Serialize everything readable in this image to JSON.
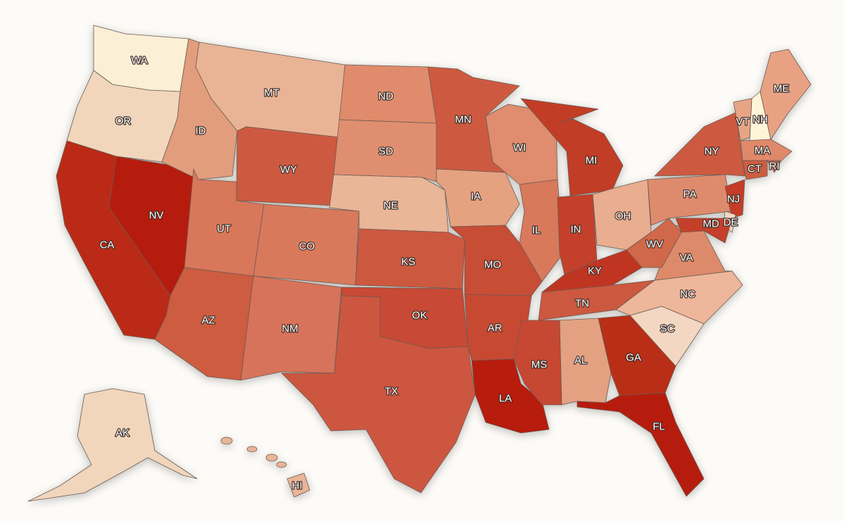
{
  "map": {
    "colors": {
      "background": "#fcfbf7",
      "border": "#6b5a52",
      "label_fill": "#ffffff",
      "label_outline": "#3a2a24"
    },
    "states": [
      {
        "abbr": "WA",
        "color": "#fbefd5"
      },
      {
        "abbr": "OR",
        "color": "#f1d6bc"
      },
      {
        "abbr": "CA",
        "color": "#bb2a13"
      },
      {
        "abbr": "NV",
        "color": "#b51f0e"
      },
      {
        "abbr": "ID",
        "color": "#e29d7d"
      },
      {
        "abbr": "MT",
        "color": "#e9b495"
      },
      {
        "abbr": "WY",
        "color": "#cd5a40"
      },
      {
        "abbr": "UT",
        "color": "#d9775a"
      },
      {
        "abbr": "CO",
        "color": "#d8795c"
      },
      {
        "abbr": "AZ",
        "color": "#cd5b41"
      },
      {
        "abbr": "NM",
        "color": "#d7735a"
      },
      {
        "abbr": "ND",
        "color": "#df8b6c"
      },
      {
        "abbr": "SD",
        "color": "#df8f70"
      },
      {
        "abbr": "NE",
        "color": "#e9b697"
      },
      {
        "abbr": "KS",
        "color": "#cd5941"
      },
      {
        "abbr": "OK",
        "color": "#c84a34"
      },
      {
        "abbr": "TX",
        "color": "#cd563f"
      },
      {
        "abbr": "MN",
        "color": "#cd5a40"
      },
      {
        "abbr": "IA",
        "color": "#e4a281"
      },
      {
        "abbr": "MO",
        "color": "#c84d36"
      },
      {
        "abbr": "AR",
        "color": "#c84a33"
      },
      {
        "abbr": "LA",
        "color": "#b71e0c"
      },
      {
        "abbr": "WI",
        "color": "#df8d6e"
      },
      {
        "abbr": "IL",
        "color": "#d8795c"
      },
      {
        "abbr": "MI",
        "color": "#c23c26"
      },
      {
        "abbr": "IN",
        "color": "#c43f29"
      },
      {
        "abbr": "OH",
        "color": "#e9ad8f"
      },
      {
        "abbr": "KY",
        "color": "#c03421"
      },
      {
        "abbr": "TN",
        "color": "#cc5840"
      },
      {
        "abbr": "MS",
        "color": "#c64630"
      },
      {
        "abbr": "AL",
        "color": "#e3a182"
      },
      {
        "abbr": "GA",
        "color": "#b92d17"
      },
      {
        "abbr": "FL",
        "color": "#b61a0c"
      },
      {
        "abbr": "SC",
        "color": "#f3d7c2"
      },
      {
        "abbr": "NC",
        "color": "#eeb69a"
      },
      {
        "abbr": "VA",
        "color": "#dd8a6b"
      },
      {
        "abbr": "WV",
        "color": "#d06849"
      },
      {
        "abbr": "PA",
        "color": "#de8b6d"
      },
      {
        "abbr": "NY",
        "color": "#cd5a40"
      },
      {
        "abbr": "VT",
        "color": "#e8a586"
      },
      {
        "abbr": "NH",
        "color": "#fef4d8"
      },
      {
        "abbr": "ME",
        "color": "#e8a283"
      },
      {
        "abbr": "MA",
        "color": "#e0896a"
      },
      {
        "abbr": "RI",
        "color": "#d67058"
      },
      {
        "abbr": "CT",
        "color": "#cd5b41"
      },
      {
        "abbr": "NJ",
        "color": "#c43d27"
      },
      {
        "abbr": "DE",
        "color": "#f2d8c2"
      },
      {
        "abbr": "MD",
        "color": "#c43f29"
      },
      {
        "abbr": "AK",
        "color": "#f1d6bc"
      },
      {
        "abbr": "HI",
        "color": "#e9b497"
      }
    ]
  }
}
